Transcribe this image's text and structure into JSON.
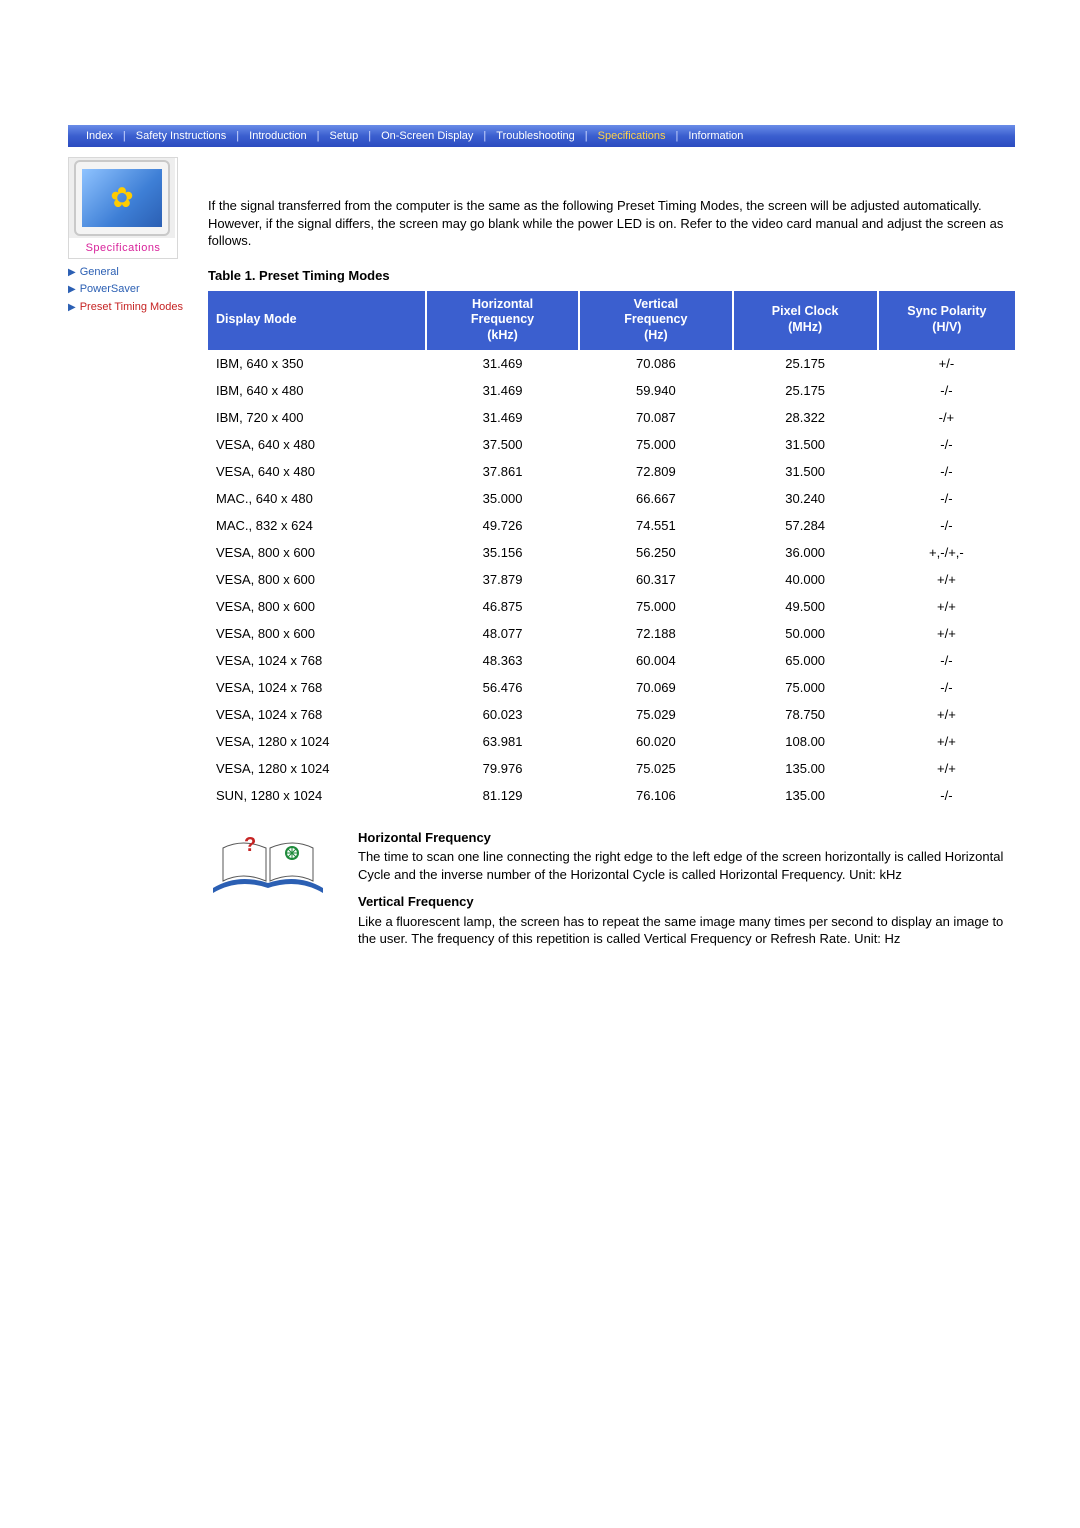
{
  "nav": {
    "items": [
      {
        "label": "Index",
        "active": false
      },
      {
        "label": "Safety Instructions",
        "active": false
      },
      {
        "label": "Introduction",
        "active": false
      },
      {
        "label": "Setup",
        "active": false
      },
      {
        "label": "On-Screen Display",
        "active": false
      },
      {
        "label": "Troubleshooting",
        "active": false
      },
      {
        "label": "Specifications",
        "active": true
      },
      {
        "label": "Information",
        "active": false
      }
    ],
    "separator": "|"
  },
  "sidebar": {
    "card_label": "Specifications",
    "links": [
      {
        "label": "General",
        "color": "blue"
      },
      {
        "label": "PowerSaver",
        "color": "blue"
      },
      {
        "label": "Preset Timing Modes",
        "color": "red"
      }
    ]
  },
  "intro": "If the signal transferred from the computer is the same as the following Preset Timing Modes, the screen will be adjusted automatically. However, if the signal differs, the screen may go blank while the power LED is on. Refer to the video card manual and adjust the screen as follows.",
  "table": {
    "caption": "Table 1. Preset Timing Modes",
    "columns": [
      "Display Mode",
      "Horizontal Frequency (kHz)",
      "Vertical Frequency (Hz)",
      "Pixel Clock (MHz)",
      "Sync Polarity (H/V)"
    ],
    "column_headers_multiline": [
      [
        "Display Mode"
      ],
      [
        "Horizontal",
        "Frequency",
        "(kHz)"
      ],
      [
        "Vertical",
        "Frequency",
        "(Hz)"
      ],
      [
        "Pixel Clock",
        "(MHz)"
      ],
      [
        "Sync Polarity",
        "(H/V)"
      ]
    ],
    "col_widths_pct": [
      27,
      19,
      19,
      18,
      17
    ],
    "header_bg": "#3b5fcf",
    "header_fg": "#ffffff",
    "rows": [
      [
        "IBM, 640 x 350",
        "31.469",
        "70.086",
        "25.175",
        "+/-"
      ],
      [
        "IBM, 640 x 480",
        "31.469",
        "59.940",
        "25.175",
        "-/-"
      ],
      [
        "IBM, 720 x 400",
        "31.469",
        "70.087",
        "28.322",
        "-/+"
      ],
      [
        "VESA, 640 x 480",
        "37.500",
        "75.000",
        "31.500",
        "-/-"
      ],
      [
        "VESA, 640 x 480",
        "37.861",
        "72.809",
        "31.500",
        "-/-"
      ],
      [
        "MAC., 640 x 480",
        "35.000",
        "66.667",
        "30.240",
        "-/-"
      ],
      [
        "MAC., 832 x 624",
        "49.726",
        "74.551",
        "57.284",
        "-/-"
      ],
      [
        "VESA, 800 x 600",
        "35.156",
        "56.250",
        "36.000",
        "+,-/+,-"
      ],
      [
        "VESA, 800 x 600",
        "37.879",
        "60.317",
        "40.000",
        "+/+"
      ],
      [
        "VESA, 800 x 600",
        "46.875",
        "75.000",
        "49.500",
        "+/+"
      ],
      [
        "VESA, 800 x 600",
        "48.077",
        "72.188",
        "50.000",
        "+/+"
      ],
      [
        "VESA, 1024 x 768",
        "48.363",
        "60.004",
        "65.000",
        "-/-"
      ],
      [
        "VESA, 1024 x 768",
        "56.476",
        "70.069",
        "75.000",
        "-/-"
      ],
      [
        "VESA, 1024 x 768",
        "60.023",
        "75.029",
        "78.750",
        "+/+"
      ],
      [
        "VESA, 1280 x 1024",
        "63.981",
        "60.020",
        "108.00",
        "+/+"
      ],
      [
        "VESA, 1280 x 1024",
        "79.976",
        "75.025",
        "135.00",
        "+/+"
      ],
      [
        "SUN, 1280 x 1024",
        "81.129",
        "76.106",
        "135.00",
        "-/-"
      ]
    ]
  },
  "defs": {
    "h_title": "Horizontal Frequency",
    "h_text": "The time to scan one line connecting the right edge to the left edge of the screen horizontally is called Horizontal Cycle and the inverse number of the Horizontal Cycle is called Horizontal Frequency. Unit: kHz",
    "v_title": "Vertical Frequency",
    "v_text": "Like a fluorescent lamp, the screen has to repeat the same image many times per second to display an image to the user. The frequency of this repetition is called Vertical Frequency or Refresh Rate. Unit: Hz"
  }
}
